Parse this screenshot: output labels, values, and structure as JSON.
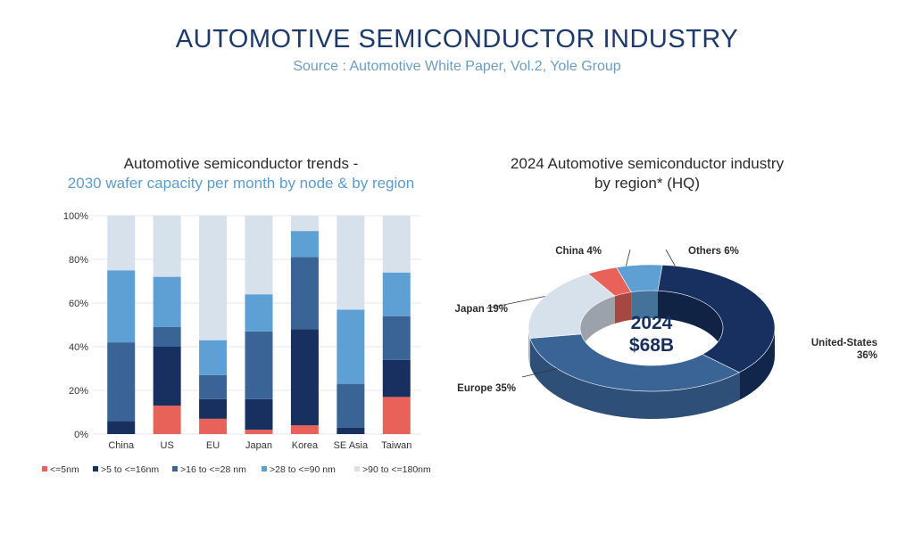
{
  "page": {
    "title": "AUTOMOTIVE SEMICONDUCTOR INDUSTRY",
    "subtitle": "Source : Automotive White Paper, Vol.2, Yole Group"
  },
  "chart_data": [
    {
      "type": "bar",
      "stacked": true,
      "title": "Automotive semiconductor trends -",
      "subtitle": "2030 wafer capacity per month by node & by region",
      "categories": [
        "China",
        "US",
        "EU",
        "Japan",
        "Korea",
        "SE Asia",
        "Taiwan"
      ],
      "y_ticks": [
        "0%",
        "20%",
        "40%",
        "60%",
        "80%",
        "100%"
      ],
      "ylim": [
        0,
        100
      ],
      "grid": true,
      "legend_position": "bottom",
      "series": [
        {
          "name": "<=5nm",
          "color": "#e8625a",
          "values": [
            0,
            13,
            7,
            2,
            4,
            0,
            17
          ]
        },
        {
          "name": ">5 to <=16nm",
          "color": "#17305f",
          "values": [
            6,
            27,
            9,
            14,
            44,
            3,
            17
          ]
        },
        {
          "name": ">16 to <=28 nm",
          "color": "#3a6496",
          "values": [
            36,
            9,
            11,
            31,
            33,
            20,
            20
          ]
        },
        {
          "name": ">28 to <=90 nm",
          "color": "#5e9fd4",
          "values": [
            33,
            23,
            16,
            17,
            12,
            34,
            20
          ]
        },
        {
          "name": ">90 to <=180nm",
          "color": "#d7e1ec",
          "values": [
            25,
            28,
            57,
            36,
            7,
            43,
            26
          ]
        }
      ]
    },
    {
      "type": "pie",
      "donut": true,
      "title_line1": "2024 Automotive semiconductor industry",
      "title_line2": "by region* (HQ)",
      "center_year": "2024",
      "center_value": "$68B",
      "slices": [
        {
          "name": "United-States",
          "label_line1": "United-States",
          "label_line2": "36%",
          "value": 36,
          "color": "#17305f"
        },
        {
          "name": "Europe",
          "label_line1": "Europe 35%",
          "label_line2": "",
          "value": 35,
          "color": "#3a6496"
        },
        {
          "name": "Japan",
          "label_line1": "Japan 19%",
          "label_line2": "",
          "value": 19,
          "color": "#d7e1ec"
        },
        {
          "name": "China",
          "label_line1": "China 4%",
          "label_line2": "",
          "value": 4,
          "color": "#e8625a"
        },
        {
          "name": "Others",
          "label_line1": "Others 6%",
          "label_line2": "",
          "value": 6,
          "color": "#5e9fd4"
        }
      ]
    }
  ]
}
